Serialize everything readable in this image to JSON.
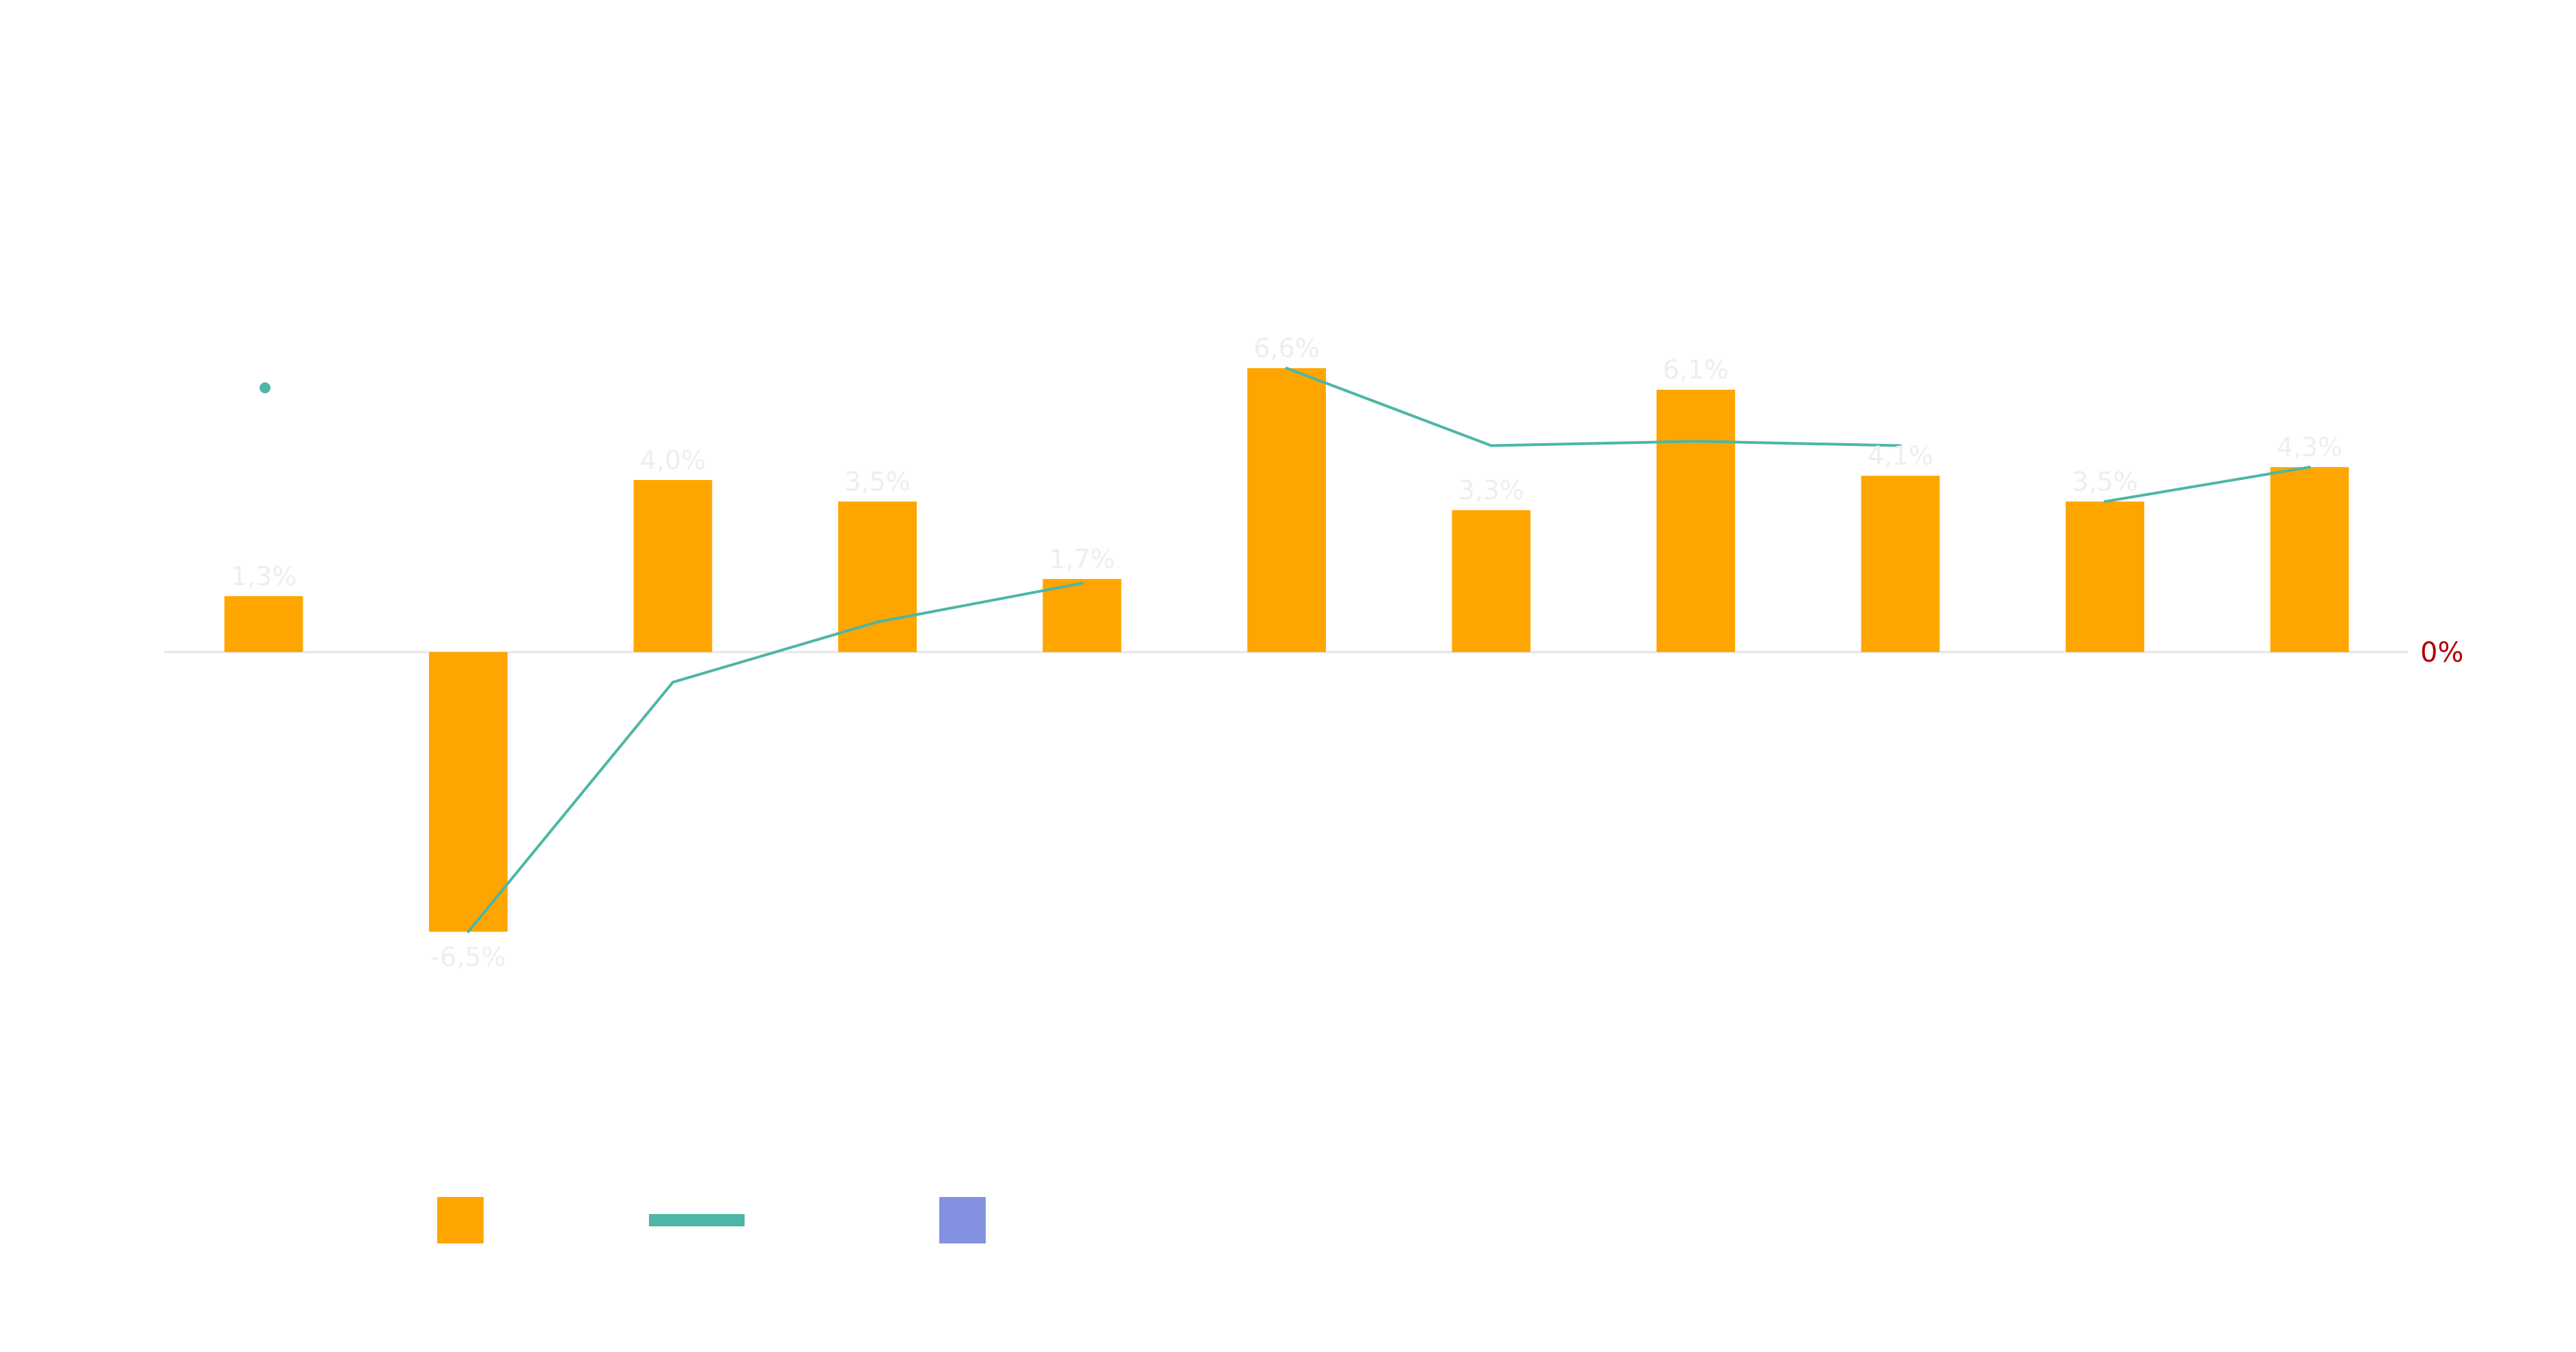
{
  "chart_data": {
    "type": "bar",
    "categories": [
      "",
      "",
      "",
      "",
      "",
      "",
      "",
      "",
      "",
      "",
      ""
    ],
    "series": [
      {
        "type": "bar",
        "color": "#FFA500",
        "values": [
          1.3,
          -6.5,
          4.0,
          3.5,
          1.7,
          6.6,
          3.3,
          6.1,
          4.1,
          3.5,
          4.3
        ],
        "labels": [
          "1,3%",
          "-6,5%",
          "4,0%",
          "3,5%",
          "1,7%",
          "6,6%",
          "3,3%",
          "6,1%",
          "4,1%",
          "3,5%",
          "4,3%"
        ]
      },
      {
        "type": "line",
        "color": "#4DB6A5",
        "values": [
          null,
          -6.5,
          -0.7,
          0.7,
          1.6,
          6.6,
          4.8,
          4.9,
          4.8,
          3.5,
          4.3
        ],
        "segments": [
          [
            0,
            0
          ],
          [
            1,
            4
          ],
          [
            5,
            8
          ],
          [
            9,
            10
          ]
        ]
      }
    ],
    "zero_line_label": "0%",
    "zero_line_label_color": "#B00000",
    "baseline_color": "#e6e6e6",
    "ylim": [
      -9,
      9.5
    ],
    "legend": {
      "placement": "bottom-left",
      "items": [
        {
          "marker": "square",
          "color": "#FFA500",
          "label": ""
        },
        {
          "marker": "line",
          "color": "#4DB6A5",
          "label": ""
        },
        {
          "marker": "square",
          "color": "#8490E0",
          "label": ""
        }
      ]
    }
  }
}
